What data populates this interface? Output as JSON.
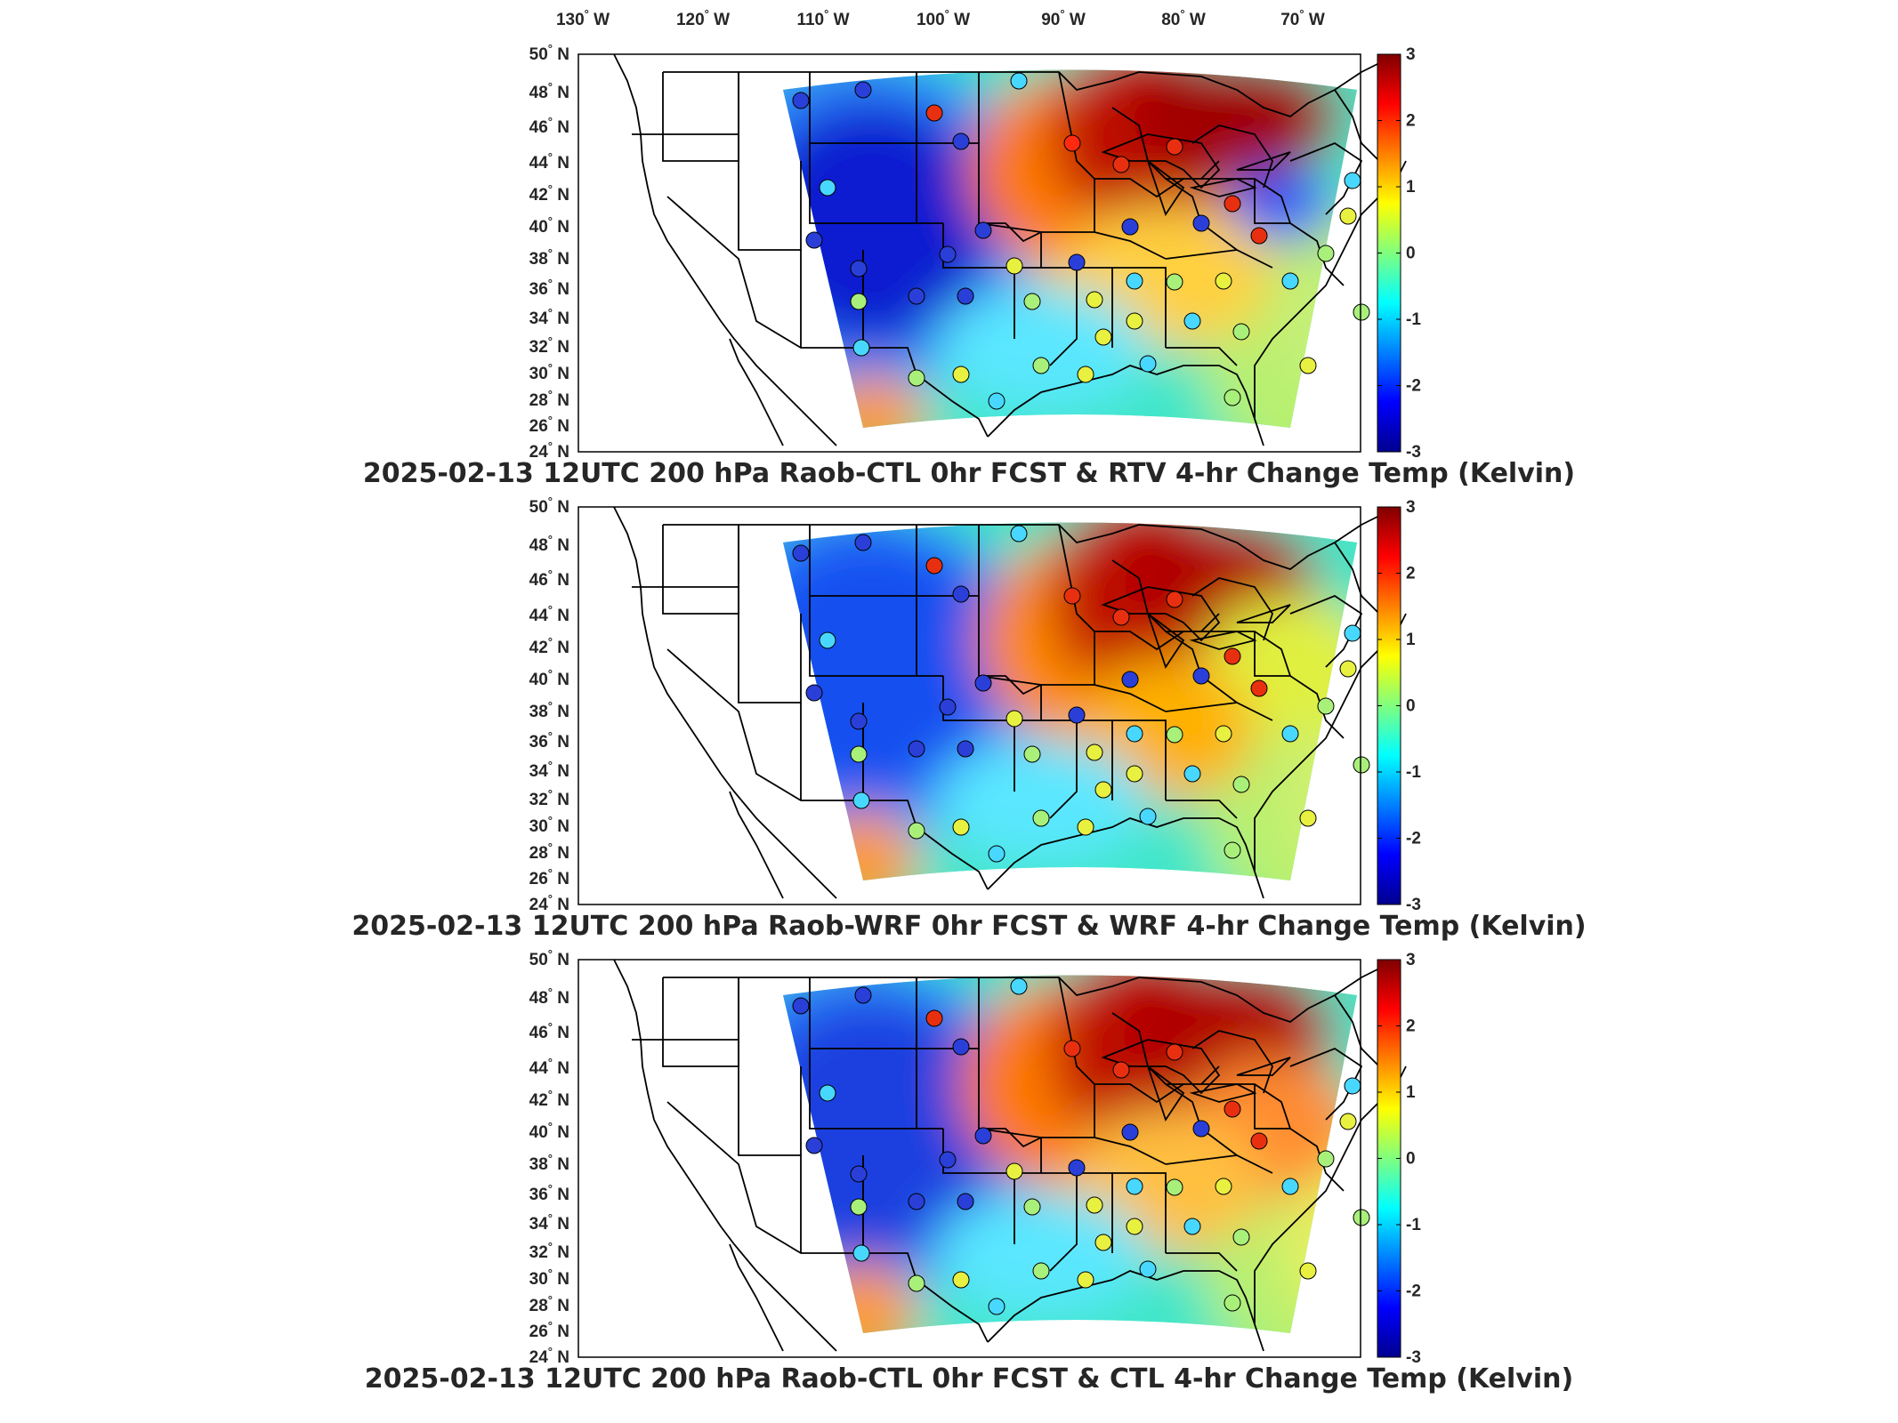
{
  "lon_ticks": [
    {
      "value": "130",
      "unit": "W"
    },
    {
      "value": "120",
      "unit": "W"
    },
    {
      "value": "110",
      "unit": "W"
    },
    {
      "value": "100",
      "unit": "W"
    },
    {
      "value": "90",
      "unit": "W"
    },
    {
      "value": "80",
      "unit": "W"
    },
    {
      "value": "70",
      "unit": "W"
    }
  ],
  "lat_ticks": [
    {
      "value": "50",
      "unit": "N"
    },
    {
      "value": "48",
      "unit": "N"
    },
    {
      "value": "46",
      "unit": "N"
    },
    {
      "value": "44",
      "unit": "N"
    },
    {
      "value": "42",
      "unit": "N"
    },
    {
      "value": "40",
      "unit": "N"
    },
    {
      "value": "38",
      "unit": "N"
    },
    {
      "value": "36",
      "unit": "N"
    },
    {
      "value": "34",
      "unit": "N"
    },
    {
      "value": "32",
      "unit": "N"
    },
    {
      "value": "30",
      "unit": "N"
    },
    {
      "value": "28",
      "unit": "N"
    },
    {
      "value": "26",
      "unit": "N"
    },
    {
      "value": "24",
      "unit": "N"
    }
  ],
  "degree_symbol": "°",
  "colorbar": {
    "colormap": "jet",
    "range": [
      -3,
      3
    ],
    "ticks": [
      "3",
      "2",
      "1",
      "0",
      "-1",
      "-2",
      "-3"
    ]
  },
  "panels": [
    {
      "title": "2025-02-13 12UTC 200 hPa Raob-CTL 0hr FCST & RTV 4-hr Change Temp (Kelvin)"
    },
    {
      "title": "2025-02-13 12UTC 200 hPa Raob-WRF 0hr FCST & WRF 4-hr Change Temp (Kelvin)"
    },
    {
      "title": "2025-02-13 12UTC 200 hPa Raob-CTL 0hr FCST & CTL 4-hr Change Temp (Kelvin)"
    }
  ],
  "colors": {
    "map_outline": "#000000",
    "text": "#262626",
    "frame": "#000000"
  }
}
